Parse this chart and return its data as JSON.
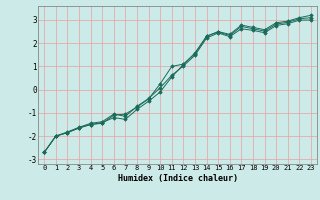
{
  "xlabel": "Humidex (Indice chaleur)",
  "bg_color": "#cceae8",
  "line_color": "#1a6b5a",
  "grid_color": "#e8a0a0",
  "xlim": [
    -0.5,
    23.5
  ],
  "ylim": [
    -3.2,
    3.6
  ],
  "yticks": [
    -3,
    -2,
    -1,
    0,
    1,
    2,
    3
  ],
  "xticks": [
    0,
    1,
    2,
    3,
    4,
    5,
    6,
    7,
    8,
    9,
    10,
    11,
    12,
    13,
    14,
    15,
    16,
    17,
    18,
    19,
    20,
    21,
    22,
    23
  ],
  "line1_x": [
    0,
    1,
    2,
    3,
    4,
    5,
    6,
    7,
    8,
    9,
    10,
    11,
    12,
    13,
    14,
    15,
    16,
    17,
    18,
    19,
    20,
    21,
    22,
    23
  ],
  "line1_y": [
    -2.7,
    -2.0,
    -1.85,
    -1.65,
    -1.5,
    -1.45,
    -1.1,
    -1.05,
    -0.75,
    -0.4,
    0.25,
    1.0,
    1.1,
    1.55,
    2.3,
    2.5,
    2.38,
    2.78,
    2.68,
    2.58,
    2.88,
    2.95,
    3.1,
    3.2
  ],
  "line2_x": [
    0,
    1,
    2,
    3,
    4,
    5,
    6,
    7,
    8,
    9,
    10,
    11,
    12,
    13,
    14,
    15,
    16,
    17,
    18,
    19,
    20,
    21,
    22,
    23
  ],
  "line2_y": [
    -2.7,
    -2.0,
    -1.85,
    -1.65,
    -1.5,
    -1.42,
    -1.2,
    -1.28,
    -0.85,
    -0.5,
    -0.1,
    0.55,
    1.08,
    1.58,
    2.3,
    2.48,
    2.33,
    2.72,
    2.62,
    2.52,
    2.82,
    2.9,
    3.05,
    3.1
  ],
  "line3_x": [
    0,
    1,
    2,
    3,
    4,
    5,
    6,
    7,
    8,
    9,
    10,
    11,
    12,
    13,
    14,
    15,
    16,
    17,
    18,
    19,
    20,
    21,
    22,
    23
  ],
  "line3_y": [
    -2.7,
    -2.0,
    -1.82,
    -1.62,
    -1.45,
    -1.38,
    -1.05,
    -1.15,
    -0.72,
    -0.38,
    0.08,
    0.62,
    1.02,
    1.48,
    2.22,
    2.44,
    2.28,
    2.62,
    2.55,
    2.45,
    2.76,
    2.84,
    2.99,
    3.0
  ]
}
